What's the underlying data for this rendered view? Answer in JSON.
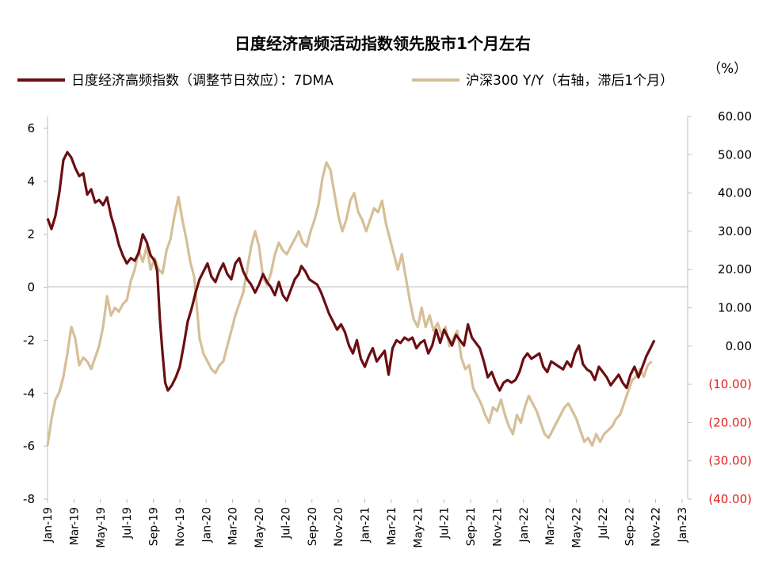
{
  "chart_data": {
    "type": "line",
    "title": "日度经济高频活动指数领先股市1个月左右",
    "right_unit_label": "（%）",
    "x_ticks": [
      "Jan-19",
      "Mar-19",
      "May-19",
      "Jul-19",
      "Sep-19",
      "Nov-19",
      "Jan-20",
      "Mar-20",
      "May-20",
      "Jul-20",
      "Sep-20",
      "Nov-20",
      "Jan-21",
      "Mar-21",
      "May-21",
      "Jul-21",
      "Sep-21",
      "Nov-21",
      "Jan-22",
      "Mar-22",
      "May-22",
      "Jul-22",
      "Sep-22",
      "Nov-22",
      "Jan-23"
    ],
    "left_axis": {
      "min": -8,
      "max": 6,
      "ticks": [
        "6",
        "4",
        "2",
        "0",
        "-2",
        "-4",
        "-6",
        "-8"
      ]
    },
    "right_axis": {
      "min": -40,
      "max": 60,
      "ticks": [
        "60.00",
        "50.00",
        "40.00",
        "30.00",
        "20.00",
        "10.00",
        "0.00",
        "(10.00)",
        "(20.00)",
        "(30.00)",
        "(40.00)"
      ],
      "negative_color": "#e0201b"
    },
    "series": [
      {
        "name": "日度经济高频指数（调整节日效应）：7DMA",
        "axis": "left",
        "color": "#6b0e12",
        "points": [
          [
            0,
            2.6
          ],
          [
            0.3,
            2.2
          ],
          [
            0.6,
            2.7
          ],
          [
            0.9,
            3.6
          ],
          [
            1.2,
            4.8
          ],
          [
            1.5,
            5.1
          ],
          [
            1.8,
            4.9
          ],
          [
            2.1,
            4.5
          ],
          [
            2.4,
            4.2
          ],
          [
            2.7,
            4.3
          ],
          [
            3.0,
            3.5
          ],
          [
            3.3,
            3.7
          ],
          [
            3.6,
            3.2
          ],
          [
            3.9,
            3.3
          ],
          [
            4.2,
            3.1
          ],
          [
            4.5,
            3.4
          ],
          [
            4.8,
            2.7
          ],
          [
            5.1,
            2.2
          ],
          [
            5.4,
            1.6
          ],
          [
            5.7,
            1.2
          ],
          [
            6.0,
            0.9
          ],
          [
            6.3,
            1.1
          ],
          [
            6.6,
            1.0
          ],
          [
            6.9,
            1.3
          ],
          [
            7.2,
            2.0
          ],
          [
            7.5,
            1.7
          ],
          [
            7.8,
            1.2
          ],
          [
            8.1,
            1.0
          ],
          [
            8.3,
            0.6
          ],
          [
            8.5,
            -1.2
          ],
          [
            8.7,
            -2.5
          ],
          [
            8.9,
            -3.6
          ],
          [
            9.1,
            -3.9
          ],
          [
            9.4,
            -3.7
          ],
          [
            9.7,
            -3.4
          ],
          [
            10.0,
            -3.0
          ],
          [
            10.3,
            -2.2
          ],
          [
            10.6,
            -1.3
          ],
          [
            10.9,
            -0.8
          ],
          [
            11.2,
            -0.2
          ],
          [
            11.5,
            0.3
          ],
          [
            11.8,
            0.6
          ],
          [
            12.1,
            0.9
          ],
          [
            12.4,
            0.4
          ],
          [
            12.7,
            0.2
          ],
          [
            13.0,
            0.6
          ],
          [
            13.3,
            0.9
          ],
          [
            13.6,
            0.5
          ],
          [
            13.9,
            0.3
          ],
          [
            14.2,
            0.9
          ],
          [
            14.5,
            1.1
          ],
          [
            14.8,
            0.6
          ],
          [
            15.1,
            0.3
          ],
          [
            15.4,
            0.1
          ],
          [
            15.7,
            -0.2
          ],
          [
            16.0,
            0.1
          ],
          [
            16.3,
            0.5
          ],
          [
            16.6,
            0.2
          ],
          [
            16.9,
            0.0
          ],
          [
            17.2,
            -0.3
          ],
          [
            17.5,
            0.2
          ],
          [
            17.8,
            -0.3
          ],
          [
            18.1,
            -0.5
          ],
          [
            18.4,
            -0.1
          ],
          [
            18.7,
            0.3
          ],
          [
            19.0,
            0.5
          ],
          [
            19.2,
            0.8
          ],
          [
            19.5,
            0.6
          ],
          [
            19.8,
            0.3
          ],
          [
            20.1,
            0.2
          ],
          [
            20.4,
            0.1
          ],
          [
            20.7,
            -0.2
          ],
          [
            21.0,
            -0.6
          ],
          [
            21.3,
            -1.0
          ],
          [
            21.6,
            -1.3
          ],
          [
            21.9,
            -1.6
          ],
          [
            22.2,
            -1.4
          ],
          [
            22.5,
            -1.7
          ],
          [
            22.8,
            -2.2
          ],
          [
            23.1,
            -2.5
          ],
          [
            23.4,
            -2.0
          ],
          [
            23.7,
            -2.7
          ],
          [
            24.0,
            -3.0
          ],
          [
            24.3,
            -2.6
          ],
          [
            24.6,
            -2.3
          ],
          [
            24.9,
            -2.8
          ],
          [
            25.2,
            -2.6
          ],
          [
            25.5,
            -2.4
          ],
          [
            25.8,
            -3.3
          ],
          [
            26.1,
            -2.3
          ],
          [
            26.4,
            -2.0
          ],
          [
            26.7,
            -2.1
          ],
          [
            27.0,
            -1.9
          ],
          [
            27.3,
            -2.0
          ],
          [
            27.6,
            -1.9
          ],
          [
            27.9,
            -2.3
          ],
          [
            28.2,
            -2.1
          ],
          [
            28.5,
            -2.0
          ],
          [
            28.8,
            -2.5
          ],
          [
            29.1,
            -2.2
          ],
          [
            29.4,
            -1.6
          ],
          [
            29.7,
            -2.1
          ],
          [
            30.0,
            -1.6
          ],
          [
            30.3,
            -1.9
          ],
          [
            30.6,
            -2.2
          ],
          [
            30.9,
            -1.8
          ],
          [
            31.2,
            -2.0
          ],
          [
            31.5,
            -2.2
          ],
          [
            31.8,
            -1.4
          ],
          [
            32.1,
            -1.9
          ],
          [
            32.4,
            -2.1
          ],
          [
            32.7,
            -2.3
          ],
          [
            33.0,
            -2.8
          ],
          [
            33.3,
            -3.4
          ],
          [
            33.6,
            -3.2
          ],
          [
            33.9,
            -3.6
          ],
          [
            34.2,
            -3.9
          ],
          [
            34.5,
            -3.6
          ],
          [
            34.8,
            -3.5
          ],
          [
            35.1,
            -3.6
          ],
          [
            35.4,
            -3.5
          ],
          [
            35.7,
            -3.2
          ],
          [
            36.0,
            -2.7
          ],
          [
            36.3,
            -2.5
          ],
          [
            36.6,
            -2.7
          ],
          [
            36.9,
            -2.6
          ],
          [
            37.2,
            -2.5
          ],
          [
            37.5,
            -3.0
          ],
          [
            37.8,
            -3.2
          ],
          [
            38.1,
            -2.8
          ],
          [
            38.4,
            -2.9
          ],
          [
            38.7,
            -3.0
          ],
          [
            39.0,
            -3.1
          ],
          [
            39.3,
            -2.8
          ],
          [
            39.6,
            -3.0
          ],
          [
            39.9,
            -2.5
          ],
          [
            40.2,
            -2.2
          ],
          [
            40.5,
            -2.9
          ],
          [
            40.8,
            -3.1
          ],
          [
            41.1,
            -3.2
          ],
          [
            41.4,
            -3.5
          ],
          [
            41.7,
            -3.0
          ],
          [
            42.0,
            -3.2
          ],
          [
            42.3,
            -3.4
          ],
          [
            42.6,
            -3.7
          ],
          [
            42.9,
            -3.5
          ],
          [
            43.2,
            -3.3
          ],
          [
            43.5,
            -3.6
          ],
          [
            43.8,
            -3.8
          ],
          [
            44.1,
            -3.3
          ],
          [
            44.4,
            -3.0
          ],
          [
            44.7,
            -3.4
          ],
          [
            45.0,
            -3.0
          ],
          [
            45.3,
            -2.6
          ],
          [
            45.6,
            -2.3
          ],
          [
            45.9,
            -2.0
          ]
        ]
      },
      {
        "name": "沪深300 Y/Y（右轴，滞后1个月）",
        "axis": "right",
        "color": "#d6bf97",
        "points": [
          [
            0,
            -26
          ],
          [
            0.3,
            -19
          ],
          [
            0.6,
            -14
          ],
          [
            0.9,
            -12
          ],
          [
            1.2,
            -8
          ],
          [
            1.5,
            -2
          ],
          [
            1.8,
            5
          ],
          [
            2.1,
            2
          ],
          [
            2.4,
            -5
          ],
          [
            2.7,
            -3
          ],
          [
            3.0,
            -4
          ],
          [
            3.3,
            -6
          ],
          [
            3.6,
            -3
          ],
          [
            3.9,
            0
          ],
          [
            4.2,
            5
          ],
          [
            4.5,
            13
          ],
          [
            4.8,
            8
          ],
          [
            5.1,
            10
          ],
          [
            5.4,
            9
          ],
          [
            5.7,
            11
          ],
          [
            6.0,
            12
          ],
          [
            6.3,
            17
          ],
          [
            6.6,
            20
          ],
          [
            6.9,
            25
          ],
          [
            7.2,
            22
          ],
          [
            7.5,
            26
          ],
          [
            7.8,
            20
          ],
          [
            8.1,
            23
          ],
          [
            8.4,
            20
          ],
          [
            8.7,
            19
          ],
          [
            9.0,
            25
          ],
          [
            9.3,
            28
          ],
          [
            9.6,
            34
          ],
          [
            9.9,
            39
          ],
          [
            10.2,
            33
          ],
          [
            10.5,
            28
          ],
          [
            10.8,
            22
          ],
          [
            11.1,
            18
          ],
          [
            11.3,
            10
          ],
          [
            11.5,
            2
          ],
          [
            11.8,
            -2
          ],
          [
            12.1,
            -4
          ],
          [
            12.4,
            -6
          ],
          [
            12.7,
            -7
          ],
          [
            13.0,
            -5
          ],
          [
            13.3,
            -4
          ],
          [
            13.6,
            0
          ],
          [
            13.9,
            4
          ],
          [
            14.2,
            8
          ],
          [
            14.5,
            11
          ],
          [
            14.8,
            14
          ],
          [
            15.1,
            20
          ],
          [
            15.4,
            26
          ],
          [
            15.7,
            30
          ],
          [
            16.0,
            26
          ],
          [
            16.3,
            18
          ],
          [
            16.6,
            16
          ],
          [
            16.9,
            19
          ],
          [
            17.2,
            24
          ],
          [
            17.5,
            27
          ],
          [
            17.8,
            25
          ],
          [
            18.1,
            24
          ],
          [
            18.4,
            26
          ],
          [
            18.7,
            28
          ],
          [
            19.0,
            30
          ],
          [
            19.3,
            27
          ],
          [
            19.6,
            26
          ],
          [
            19.9,
            30
          ],
          [
            20.2,
            33
          ],
          [
            20.5,
            37
          ],
          [
            20.8,
            44
          ],
          [
            21.1,
            48
          ],
          [
            21.4,
            46
          ],
          [
            21.7,
            40
          ],
          [
            22.0,
            34
          ],
          [
            22.3,
            30
          ],
          [
            22.6,
            33
          ],
          [
            22.9,
            38
          ],
          [
            23.2,
            40
          ],
          [
            23.5,
            35
          ],
          [
            23.8,
            33
          ],
          [
            24.1,
            30
          ],
          [
            24.4,
            33
          ],
          [
            24.7,
            36
          ],
          [
            25.0,
            35
          ],
          [
            25.3,
            38
          ],
          [
            25.6,
            32
          ],
          [
            25.9,
            28
          ],
          [
            26.2,
            24
          ],
          [
            26.5,
            20
          ],
          [
            26.8,
            24
          ],
          [
            27.1,
            18
          ],
          [
            27.4,
            12
          ],
          [
            27.7,
            7
          ],
          [
            28.0,
            5
          ],
          [
            28.3,
            10
          ],
          [
            28.6,
            5
          ],
          [
            28.9,
            8
          ],
          [
            29.2,
            4
          ],
          [
            29.5,
            6
          ],
          [
            29.8,
            3
          ],
          [
            30.1,
            5
          ],
          [
            30.4,
            0
          ],
          [
            30.7,
            2
          ],
          [
            31.0,
            4
          ],
          [
            31.3,
            -3
          ],
          [
            31.6,
            -6
          ],
          [
            31.9,
            -5
          ],
          [
            32.2,
            -11
          ],
          [
            32.5,
            -13
          ],
          [
            32.8,
            -15
          ],
          [
            33.1,
            -18
          ],
          [
            33.4,
            -20
          ],
          [
            33.7,
            -16
          ],
          [
            34.0,
            -17
          ],
          [
            34.3,
            -14
          ],
          [
            34.6,
            -18
          ],
          [
            34.9,
            -21
          ],
          [
            35.2,
            -23
          ],
          [
            35.5,
            -18
          ],
          [
            35.8,
            -20
          ],
          [
            36.1,
            -16
          ],
          [
            36.4,
            -13
          ],
          [
            36.7,
            -15
          ],
          [
            37.0,
            -17
          ],
          [
            37.3,
            -20
          ],
          [
            37.6,
            -23
          ],
          [
            37.9,
            -24
          ],
          [
            38.2,
            -22
          ],
          [
            38.5,
            -20
          ],
          [
            38.8,
            -18
          ],
          [
            39.1,
            -16
          ],
          [
            39.4,
            -15
          ],
          [
            39.7,
            -17
          ],
          [
            40.0,
            -19
          ],
          [
            40.3,
            -22
          ],
          [
            40.6,
            -25
          ],
          [
            40.9,
            -24
          ],
          [
            41.2,
            -26
          ],
          [
            41.5,
            -23
          ],
          [
            41.8,
            -25
          ],
          [
            42.1,
            -23
          ],
          [
            42.4,
            -22
          ],
          [
            42.7,
            -21
          ],
          [
            43.0,
            -19
          ],
          [
            43.3,
            -18
          ],
          [
            43.6,
            -15
          ],
          [
            43.9,
            -12
          ],
          [
            44.2,
            -9
          ],
          [
            44.5,
            -8
          ],
          [
            44.8,
            -6
          ],
          [
            45.1,
            -8
          ],
          [
            45.4,
            -5
          ],
          [
            45.7,
            -4
          ]
        ]
      }
    ]
  }
}
